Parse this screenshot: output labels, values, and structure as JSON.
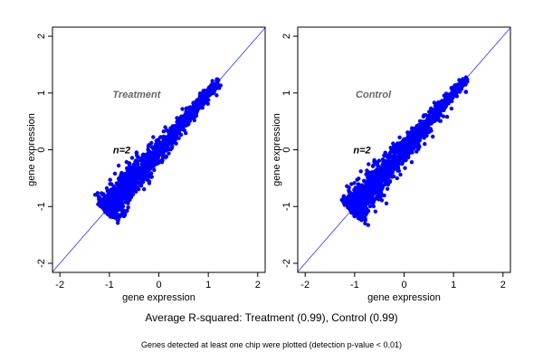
{
  "chart_data": [
    {
      "type": "scatter",
      "panel": "Treatment",
      "title": "",
      "xlabel": "gene expression",
      "ylabel": "gene expression",
      "xlim": [
        -2.15,
        2.15
      ],
      "ylim": [
        -2.16,
        2.16
      ],
      "xticks": [
        "-2",
        "-1",
        "0",
        "1",
        "2"
      ],
      "yticks": [
        "-2",
        "-1",
        "0",
        "1",
        "2"
      ],
      "tick_values": [
        -2,
        -1,
        0,
        1,
        2
      ],
      "annotations": {
        "group": "Treatment",
        "n": "n=2"
      },
      "reference_line": "y = x",
      "point_color": "#0000ff",
      "line_color": "#3333ff",
      "cloud": {
        "x_min": -1.05,
        "x_max": 1.2,
        "spread_low": 0.09,
        "spread_high": 0.025,
        "count": 1400,
        "seed": 7
      },
      "outliers": [
        [
          -0.45,
          -0.05
        ],
        [
          -0.2,
          0.08
        ],
        [
          -0.6,
          -0.24
        ],
        [
          0.15,
          -0.12
        ],
        [
          -0.42,
          -0.13
        ],
        [
          -0.05,
          0.1
        ]
      ]
    },
    {
      "type": "scatter",
      "panel": "Control",
      "title": "",
      "xlabel": "gene expression",
      "ylabel": "gene expression",
      "xlim": [
        -2.15,
        2.15
      ],
      "ylim": [
        -2.16,
        2.16
      ],
      "xticks": [
        "-2",
        "-1",
        "0",
        "1",
        "2"
      ],
      "yticks": [
        "-2",
        "-1",
        "0",
        "1",
        "2"
      ],
      "tick_values": [
        -2,
        -1,
        0,
        1,
        2
      ],
      "annotations": {
        "group": "Control",
        "n": "n=2"
      },
      "reference_line": "y = x",
      "point_color": "#0000ff",
      "line_color": "#3333ff",
      "cloud": {
        "x_min": -1.05,
        "x_max": 1.25,
        "spread_low": 0.1,
        "spread_high": 0.02,
        "count": 1400,
        "seed": 13
      },
      "outliers": [
        [
          1.25,
          1.02
        ],
        [
          -0.6,
          -0.21
        ],
        [
          -0.2,
          0.07
        ],
        [
          -0.4,
          -0.1
        ],
        [
          -0.6,
          -0.88
        ]
      ]
    }
  ],
  "caption": "Average R-squared: Treatment (0.99), Control (0.99)",
  "footnote": "Genes detected at least one chip were plotted (detection p-value < 0.01)"
}
